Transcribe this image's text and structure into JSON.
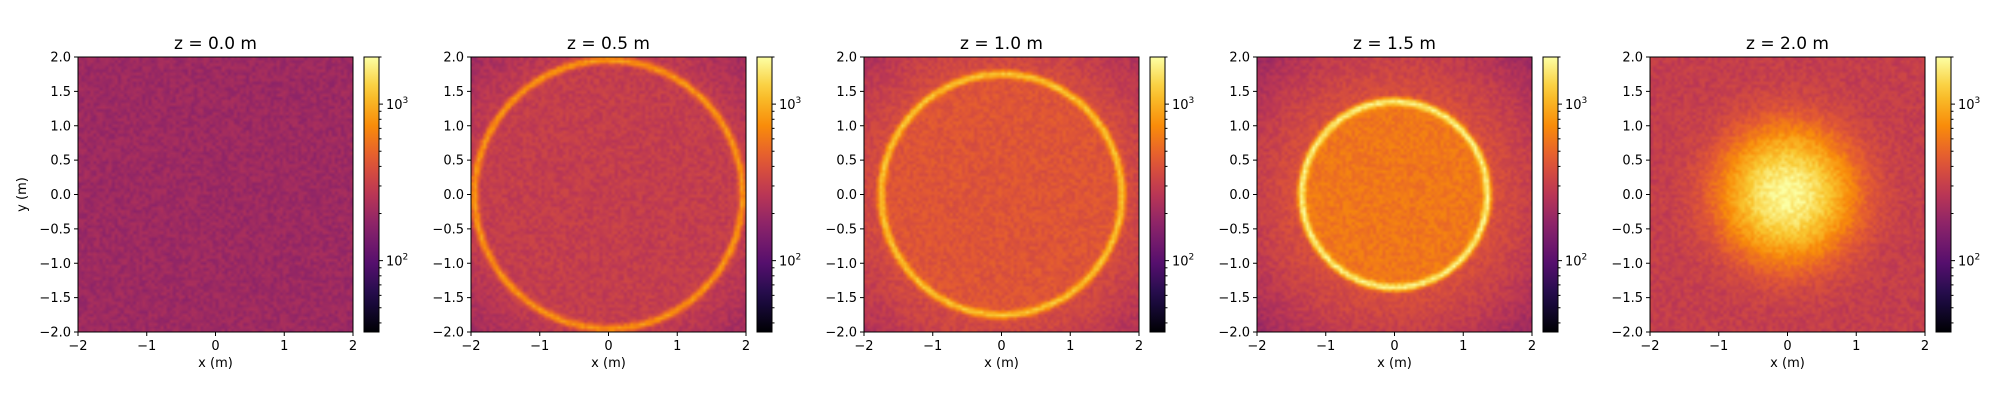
{
  "chart_data": {
    "type": "heatmap",
    "colormap": "inferno",
    "color_scale": "log",
    "colorbar": {
      "ticks": [
        {
          "value": 100,
          "base": "10",
          "exp": "2"
        },
        {
          "value": 1000,
          "base": "10",
          "exp": "3"
        }
      ],
      "range": [
        35,
        2000
      ]
    },
    "x_ticks": [
      "−2",
      "−1",
      "0",
      "1",
      "2"
    ],
    "y_ticks": [
      "2.0",
      "1.5",
      "1.0",
      "0.5",
      "0.0",
      "−0.5",
      "−1.0",
      "−1.5",
      "−2.0"
    ],
    "xlim": [
      -2,
      2
    ],
    "ylim": [
      -2,
      2
    ],
    "panels": [
      {
        "title": "z = 0.0 m",
        "xlabel": "x (m)",
        "ylabel": "y (m)",
        "ring_radius": null,
        "background_level": 200,
        "ring_level": null,
        "center_level": 200
      },
      {
        "title": "z = 0.5 m",
        "xlabel": "x (m)",
        "ylabel": "",
        "ring_radius": 1.95,
        "background_level": 300,
        "ring_level": 800,
        "center_level": 300
      },
      {
        "title": "z = 1.0 m",
        "xlabel": "x (m)",
        "ylabel": "",
        "ring_radius": 1.75,
        "background_level": 380,
        "ring_level": 1200,
        "center_level": 420
      },
      {
        "title": "z = 1.5 m",
        "xlabel": "x (m)",
        "ylabel": "",
        "ring_radius": 1.35,
        "background_level": 400,
        "ring_level": 1800,
        "center_level": 600
      },
      {
        "title": "z = 2.0 m",
        "xlabel": "x (m)",
        "ylabel": "",
        "ring_radius": null,
        "background_level": 300,
        "ring_level": null,
        "center_level": 1900
      }
    ]
  }
}
